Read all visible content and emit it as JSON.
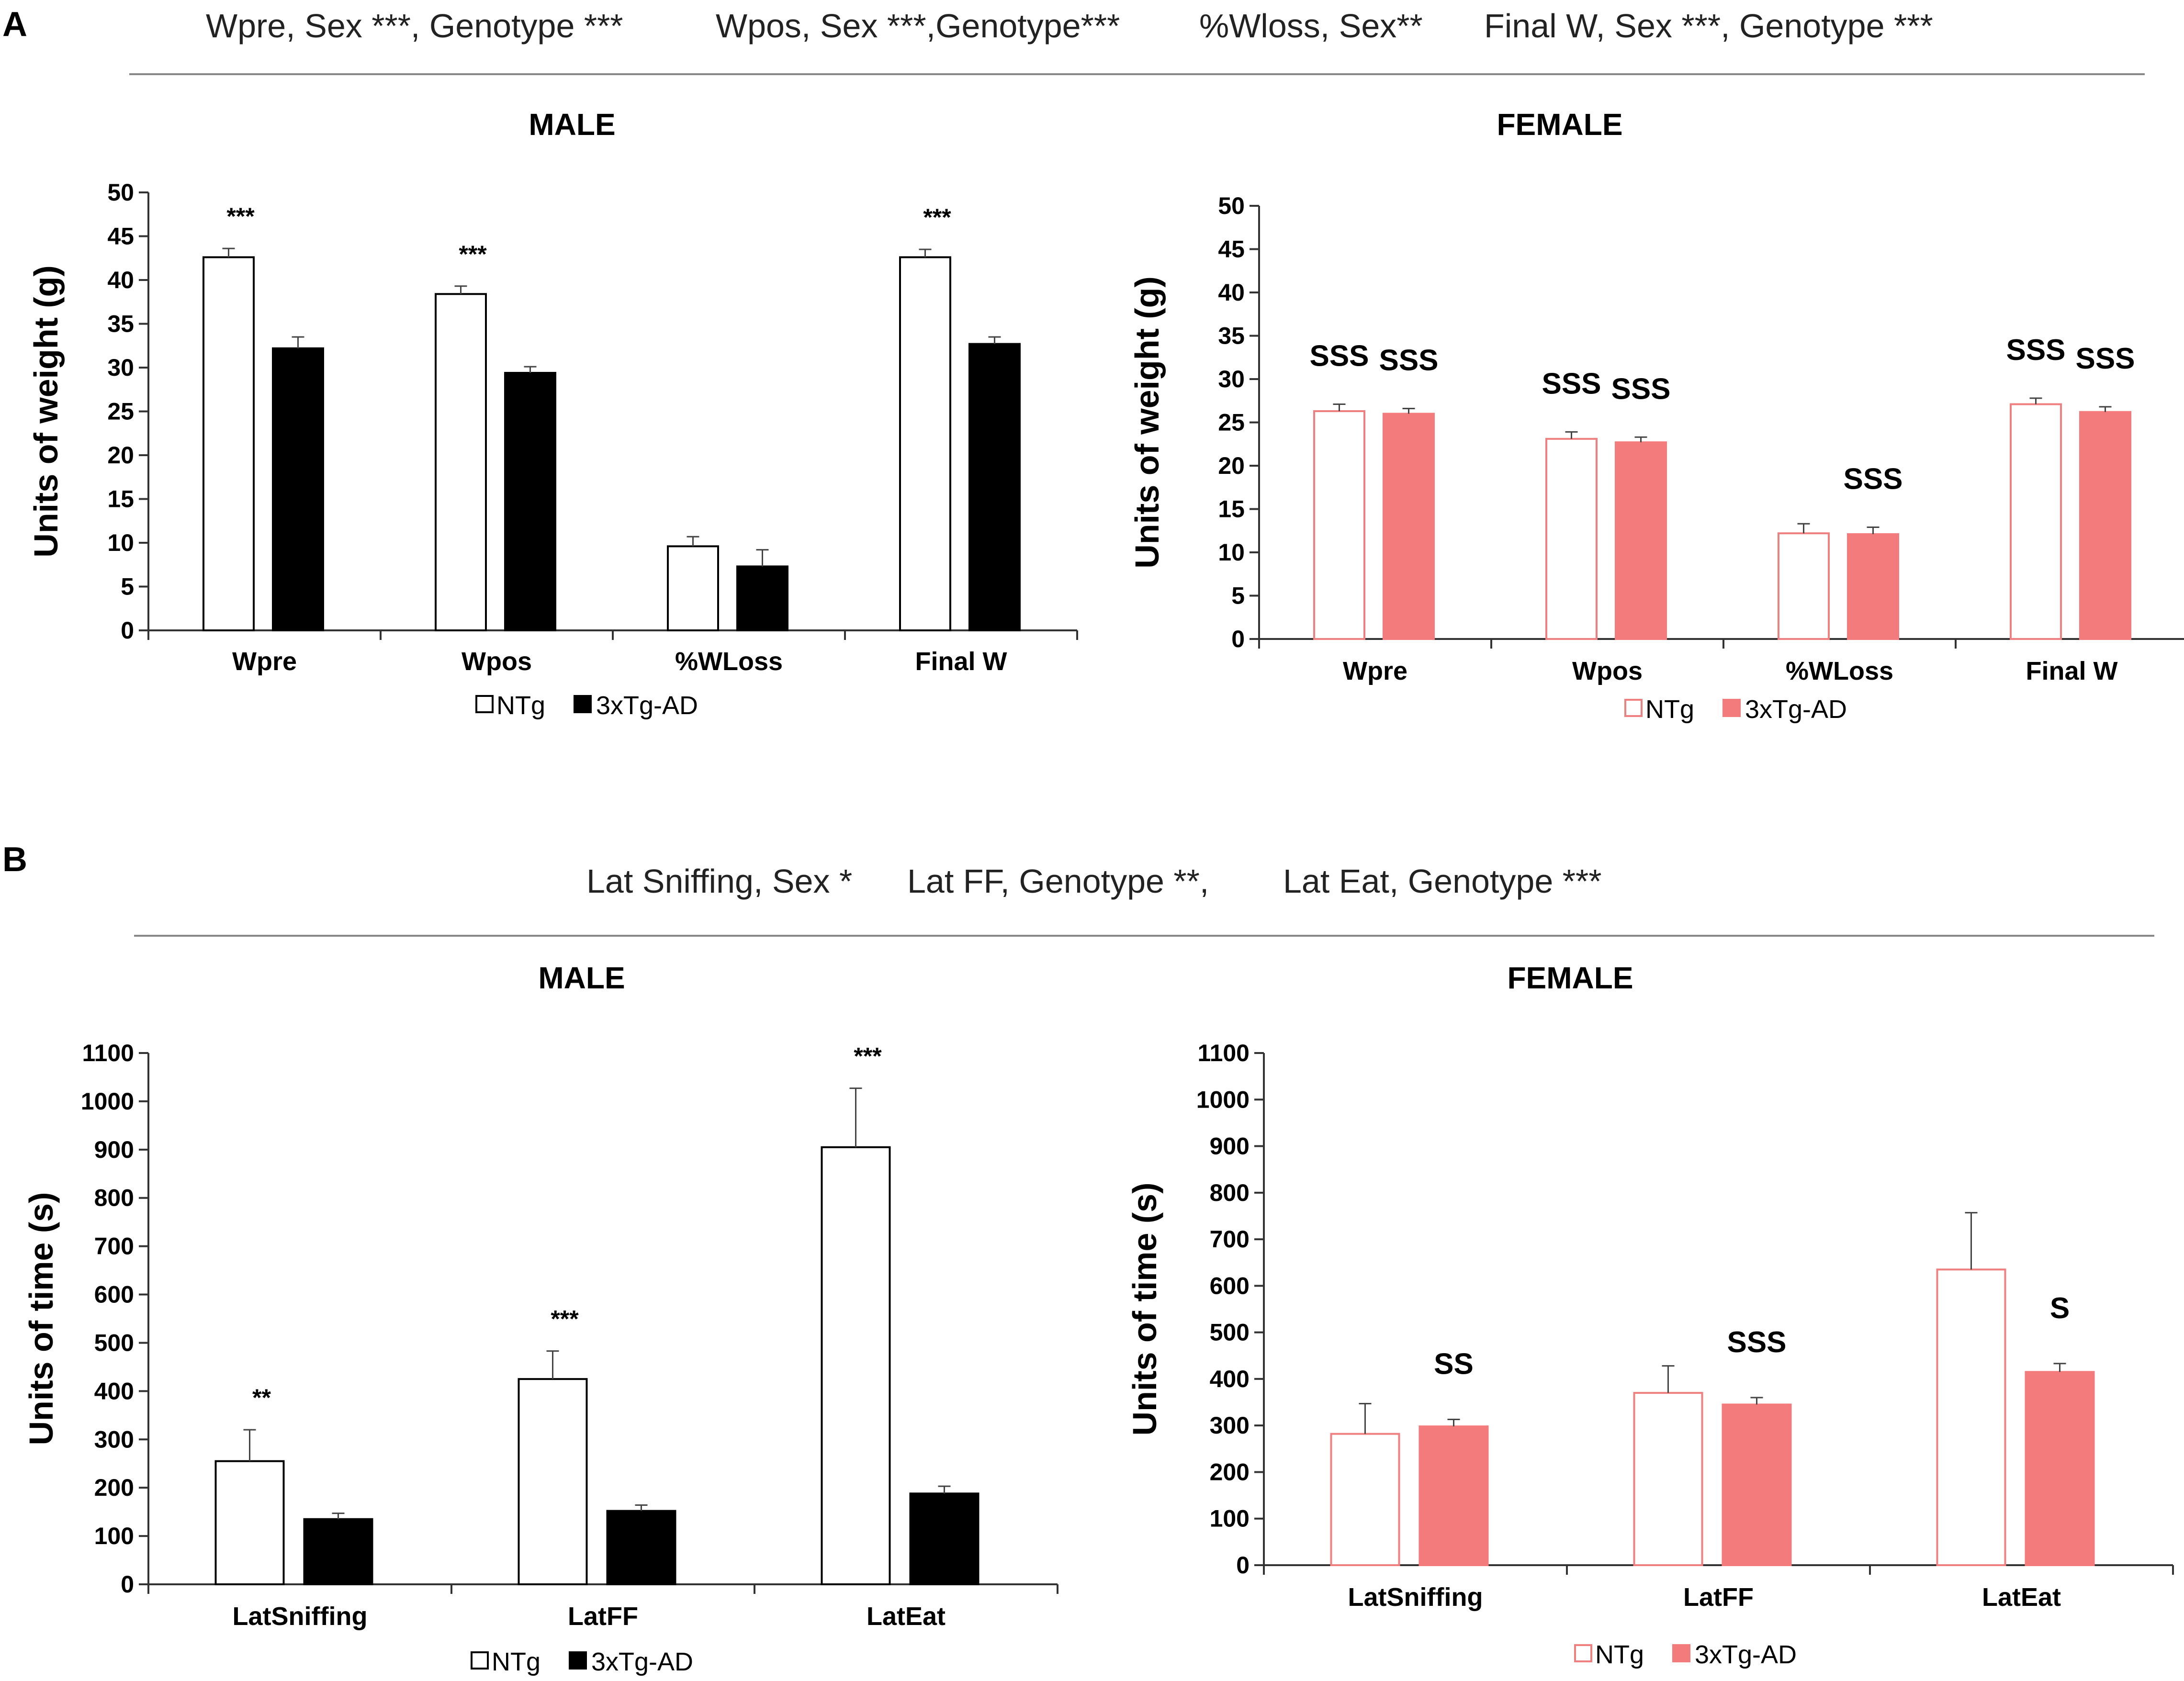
{
  "panels": [
    {
      "letter": "A",
      "stats": [
        "Wpre, Sex ***, Genotype ***",
        "Wpos, Sex ***,Genotype***",
        "%Wloss, Sex**",
        "Final W, Sex ***, Genotype ***"
      ]
    },
    {
      "letter": "B",
      "stats": [
        "Lat Sniffing, Sex *",
        "Lat FF, Genotype **,",
        "Lat Eat,  Genotype ***"
      ]
    }
  ],
  "legend": {
    "ntg": "NTg",
    "tg": "3xTg-AD"
  },
  "colors": {
    "male_tg": "#000000",
    "female_tg": "#f47b7c",
    "female_outline": "#f08080",
    "male_outline": "#000000",
    "axis": "#333333"
  },
  "chart_data": [
    {
      "type": "bar",
      "title": "MALE",
      "ylabel": "Units of weight (g)",
      "ylim": [
        0,
        50
      ],
      "ystep": 5,
      "categories": [
        "Wpre",
        "Wpos",
        "%WLoss",
        "Final W"
      ],
      "series": [
        {
          "name": "NTg",
          "values": [
            42.6,
            38.4,
            9.6,
            42.6
          ],
          "errors": [
            1.0,
            0.9,
            1.1,
            0.9
          ]
        },
        {
          "name": "3xTg-AD",
          "values": [
            32.2,
            29.4,
            7.3,
            32.7
          ],
          "errors": [
            1.3,
            0.7,
            1.9,
            0.8
          ]
        }
      ],
      "annotations": [
        [
          "***",
          ""
        ],
        [
          "***",
          ""
        ],
        [
          "",
          ""
        ],
        [
          "***",
          ""
        ]
      ]
    },
    {
      "type": "bar",
      "title": "FEMALE",
      "ylabel": "Units of weight (g)",
      "ylim": [
        0,
        50
      ],
      "ystep": 5,
      "categories": [
        "Wpre",
        "Wpos",
        "%WLoss",
        "Final W"
      ],
      "series": [
        {
          "name": "NTg",
          "values": [
            26.3,
            23.1,
            12.2,
            27.1
          ],
          "errors": [
            0.8,
            0.8,
            1.1,
            0.7
          ]
        },
        {
          "name": "3xTg-AD",
          "values": [
            26.0,
            22.7,
            12.1,
            26.2
          ],
          "errors": [
            0.6,
            0.6,
            0.8,
            0.6
          ]
        }
      ],
      "annotations": [
        [
          "SSS",
          "SSS"
        ],
        [
          "SSS",
          "SSS"
        ],
        [
          "",
          "SSS"
        ],
        [
          "SSS",
          "SSS"
        ]
      ]
    },
    {
      "type": "bar",
      "title": "MALE",
      "ylabel": "Units of time (s)",
      "ylim": [
        0,
        1100
      ],
      "ystep": 100,
      "categories": [
        "LatSniffing",
        "LatFF",
        "LatEat"
      ],
      "series": [
        {
          "name": "NTg",
          "values": [
            255,
            425,
            905
          ],
          "errors": [
            65,
            58,
            122
          ]
        },
        {
          "name": "3xTg-AD",
          "values": [
            135,
            152,
            188
          ],
          "errors": [
            12,
            12,
            15
          ]
        }
      ],
      "annotations": [
        [
          "**",
          ""
        ],
        [
          "***",
          ""
        ],
        [
          "***",
          ""
        ]
      ]
    },
    {
      "type": "bar",
      "title": "FEMALE",
      "ylabel": "Units of time (s)",
      "ylim": [
        0,
        1100
      ],
      "ystep": 100,
      "categories": [
        "LatSniffing",
        "LatFF",
        "LatEat"
      ],
      "series": [
        {
          "name": "NTg",
          "values": [
            282,
            370,
            635
          ],
          "errors": [
            65,
            58,
            122
          ]
        },
        {
          "name": "3xTg-AD",
          "values": [
            298,
            345,
            415
          ],
          "errors": [
            15,
            15,
            18
          ]
        }
      ],
      "annotations": [
        [
          "",
          "SS"
        ],
        [
          "",
          "SSS"
        ],
        [
          "",
          "S"
        ]
      ]
    }
  ]
}
